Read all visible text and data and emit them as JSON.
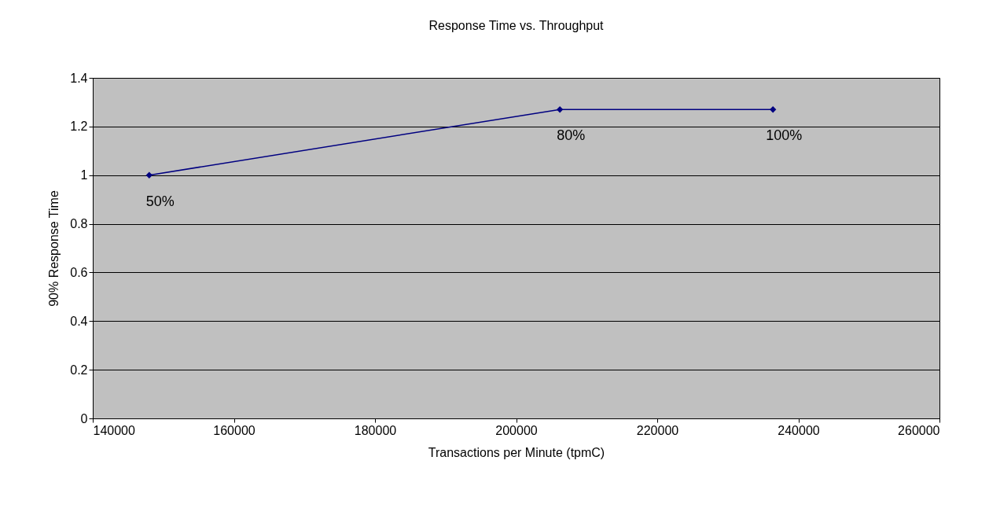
{
  "chart_data": {
    "type": "line",
    "title": "Response Time vs. Throughput",
    "xlabel": "Transactions per Minute (tpmC)",
    "ylabel": "90% Response Time",
    "x": [
      148000,
      206200,
      236400
    ],
    "series": [
      {
        "color": "#000080",
        "values": [
          1.0,
          1.27,
          1.27
        ]
      }
    ],
    "annotations": [
      {
        "text": "50%",
        "x": 148000,
        "y": 1.0
      },
      {
        "text": "80%",
        "x": 206200,
        "y": 1.27
      },
      {
        "text": "100%",
        "x": 236400,
        "y": 1.27
      }
    ],
    "xlim": [
      140000,
      260000
    ],
    "xticks": [
      140000,
      160000,
      180000,
      200000,
      220000,
      240000,
      260000
    ],
    "ylim": [
      0,
      1.4
    ],
    "yticks": [
      0,
      0.2,
      0.4,
      0.6,
      0.8,
      1,
      1.2,
      1.4
    ],
    "grid": "y",
    "marker": "diamond",
    "line_style": "solid"
  }
}
